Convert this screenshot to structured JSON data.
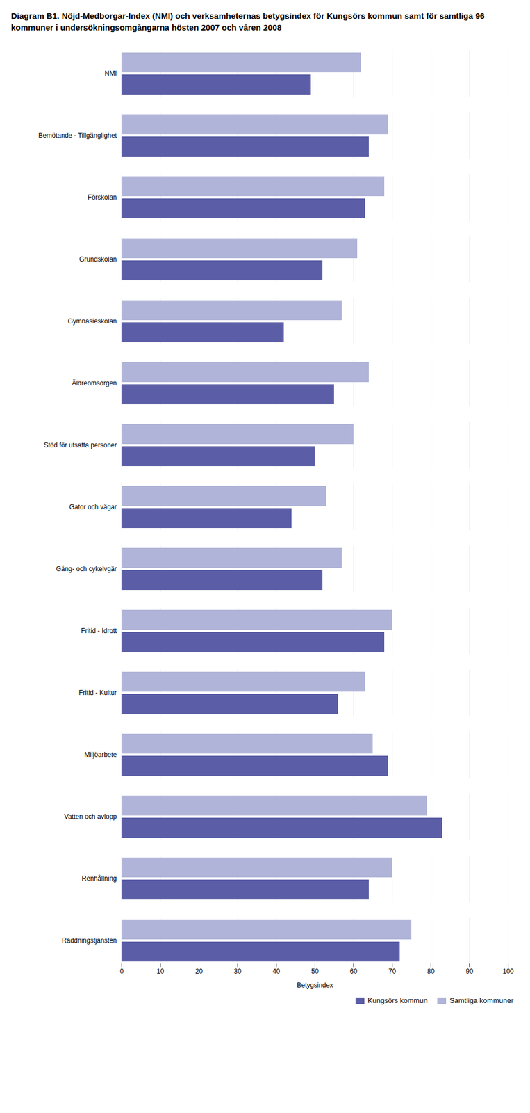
{
  "chart_data": {
    "type": "bar",
    "title": "Diagram B1. Nöjd-Medborgar-Index (NMI) och verksamheternas betygsindex för Kungsörs kommun samt för samtliga 96 kommuner i undersökningsomgångarna hösten 2007 och våren 2008",
    "orientation": "horizontal",
    "categories": [
      "NMI",
      "Bemötande - Tillgänglighet",
      "Förskolan",
      "Grundskolan",
      "Gymnasieskolan",
      "Äldreomsorgen",
      "Stöd för utsatta personer",
      "Gator och vägar",
      "Gång- och cykelvgär",
      "Fritid - Idrott",
      "Fritid - Kultur",
      "Miljöarbete",
      "Vatten och avlopp",
      "Renhållning",
      "Räddningstjänsten"
    ],
    "series": [
      {
        "name": "Kungsörs kommun",
        "color": "#5b5ea6",
        "values": [
          49,
          64,
          63,
          52,
          42,
          55,
          50,
          44,
          52,
          68,
          56,
          69,
          83,
          64,
          72
        ]
      },
      {
        "name": "Samtliga kommuner",
        "color": "#b0b4d8",
        "values": [
          62,
          69,
          68,
          61,
          57,
          64,
          60,
          53,
          57,
          70,
          63,
          65,
          79,
          70,
          75
        ]
      }
    ],
    "xlabel": "Betygsindex",
    "xlim": [
      0,
      100
    ],
    "xticks": [
      0,
      10,
      20,
      30,
      40,
      50,
      60,
      70,
      80,
      90,
      100
    ],
    "grid": true,
    "legend": "lower right"
  }
}
